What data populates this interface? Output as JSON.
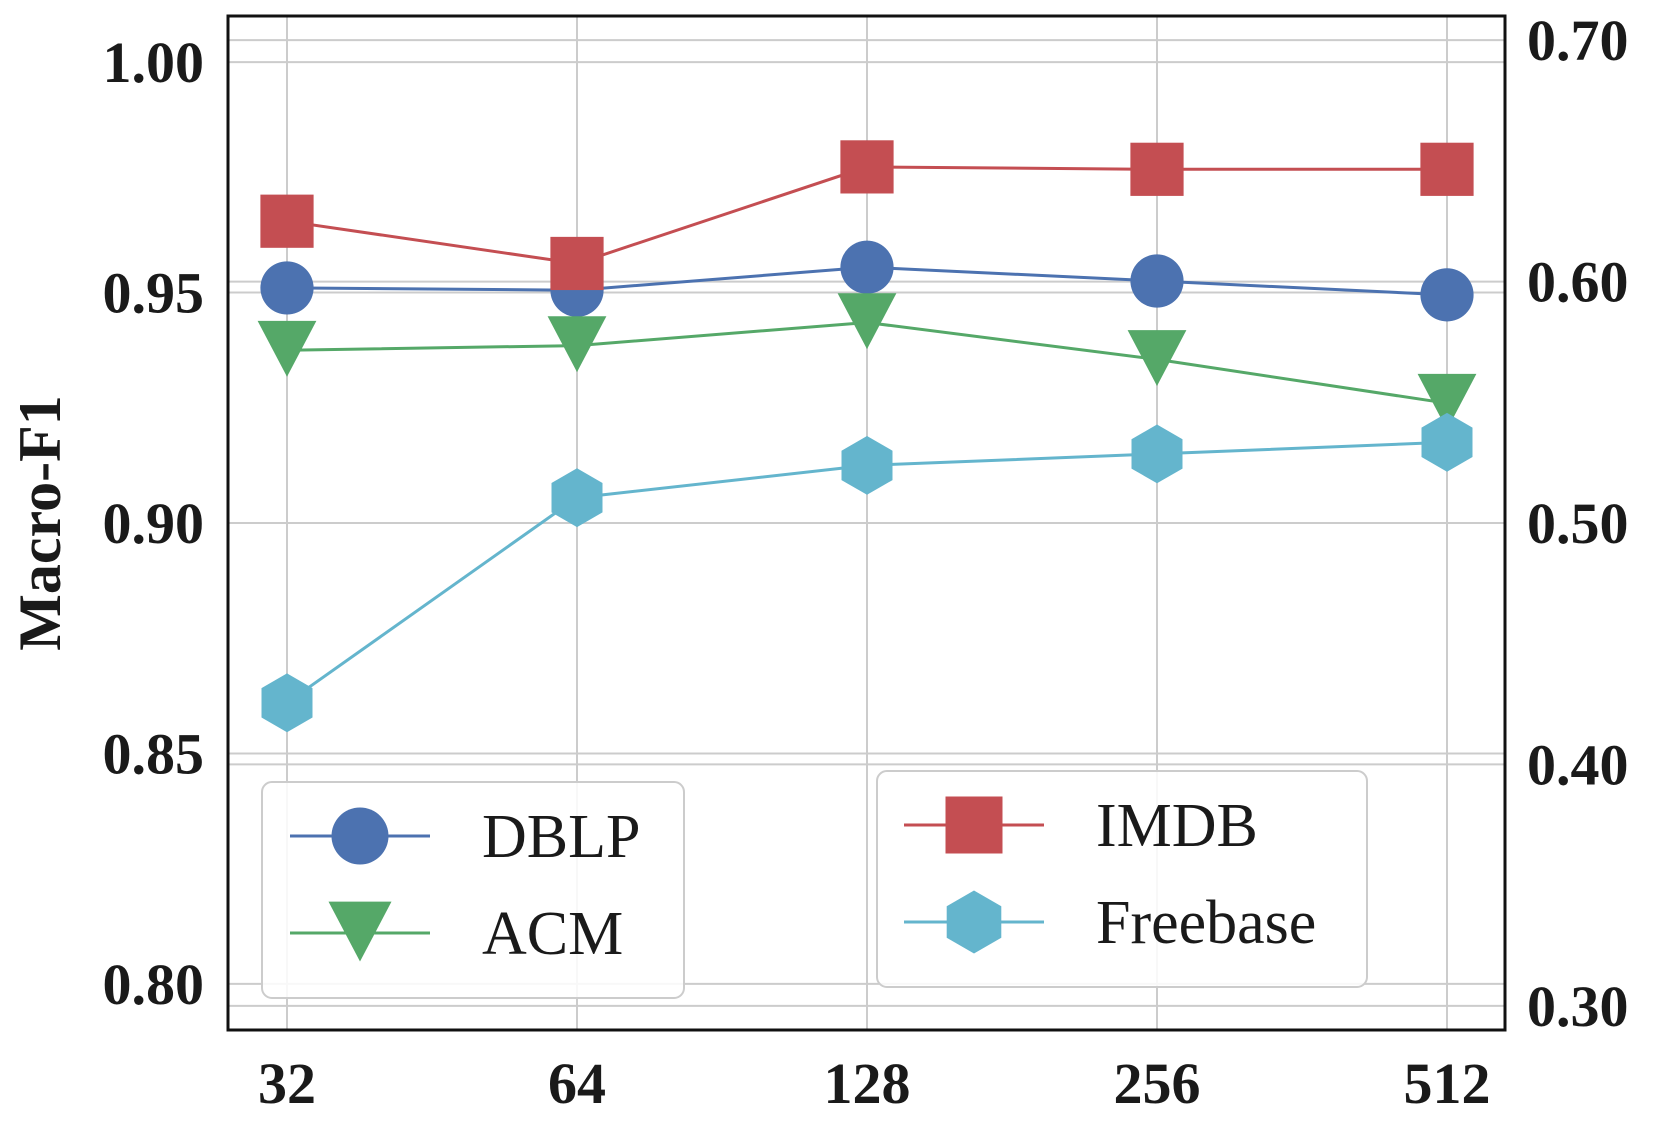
{
  "chart_data": {
    "type": "line",
    "title": "",
    "xlabel": "",
    "ylabel": "Macro-F1",
    "categories": [
      "32",
      "64",
      "128",
      "256",
      "512"
    ],
    "ylim": [
      0.79,
      1.01
    ],
    "yticks": [
      "0.80",
      "0.85",
      "0.90",
      "0.95",
      "1.00"
    ],
    "y2lim": [
      0.29,
      0.71
    ],
    "y2ticks": [
      "0.30",
      "0.40",
      "0.50",
      "0.60",
      "0.70"
    ],
    "grid": true,
    "series": [
      {
        "name": "DBLP",
        "axis": "left",
        "color": "#4c72b0",
        "marker": "circle",
        "values": [
          0.951,
          0.9505,
          0.9555,
          0.9525,
          0.9495
        ]
      },
      {
        "name": "ACM",
        "axis": "left",
        "color": "#55a868",
        "marker": "triangle-down",
        "values": [
          0.9375,
          0.9385,
          0.9435,
          0.9355,
          0.926
        ]
      },
      {
        "name": "IMDB",
        "axis": "right",
        "color": "#c44e52",
        "marker": "square",
        "values": [
          0.625,
          0.6075,
          0.6475,
          0.6465,
          0.6465
        ]
      },
      {
        "name": "Freebase",
        "axis": "left",
        "color": "#64b5cd",
        "marker": "hexagon",
        "values": [
          0.861,
          0.9055,
          0.9125,
          0.915,
          0.9175
        ]
      }
    ],
    "legend": [
      {
        "placement": "lower-left",
        "entries": [
          "DBLP",
          "ACM"
        ]
      },
      {
        "placement": "lower-center-right",
        "entries": [
          "IMDB",
          "Freebase"
        ]
      }
    ]
  }
}
